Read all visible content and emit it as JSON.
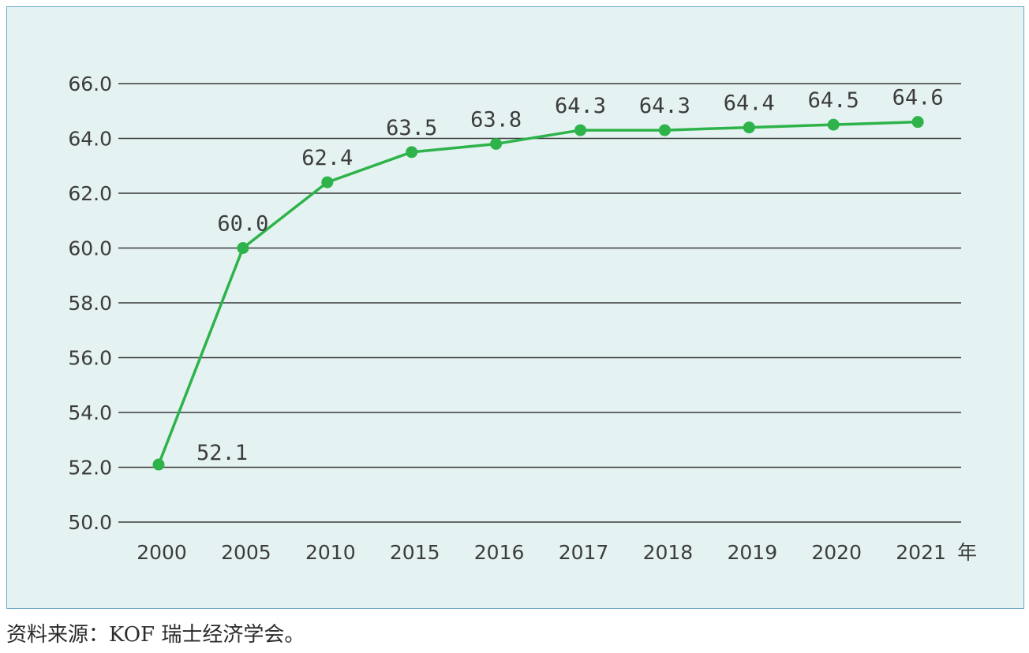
{
  "chart_data": {
    "type": "line",
    "categories": [
      "2000",
      "2005",
      "2010",
      "2015",
      "2016",
      "2017",
      "2018",
      "2019",
      "2020",
      "2021"
    ],
    "values": [
      52.1,
      60.0,
      62.4,
      63.5,
      63.8,
      64.3,
      64.3,
      64.4,
      64.5,
      64.6
    ],
    "data_labels": [
      "52.1",
      "60.0",
      "62.4",
      "63.5",
      "63.8",
      "64.3",
      "64.3",
      "64.4",
      "64.5",
      "64.6"
    ],
    "y_ticks": [
      "50.0",
      "52.0",
      "54.0",
      "56.0",
      "58.0",
      "60.0",
      "62.0",
      "64.0",
      "66.0"
    ],
    "ylim": [
      50,
      66
    ],
    "x_unit": "年",
    "grid": true,
    "line_color": "#2db34a",
    "grid_color": "#3a3a3a"
  },
  "source": "资料来源：KOF 瑞士经济学会。"
}
